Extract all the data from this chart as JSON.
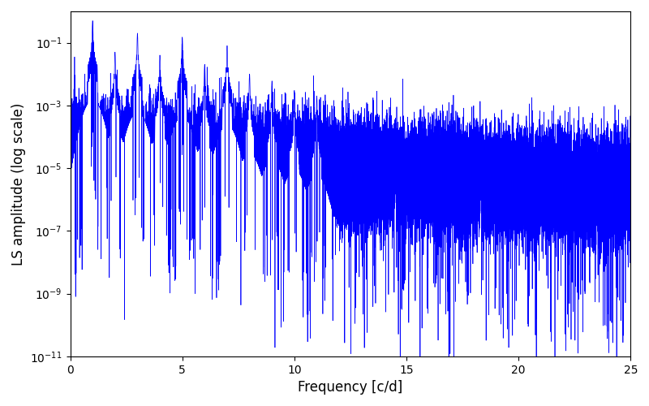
{
  "title": "",
  "xlabel": "Frequency [c/d]",
  "ylabel": "LS amplitude (log scale)",
  "line_color": "#0000FF",
  "xlim": [
    0,
    25
  ],
  "ylim": [
    1e-11,
    1.0
  ],
  "freq_max": 25,
  "n_points": 50000,
  "background_color": "#ffffff",
  "figsize": [
    8.0,
    5.0
  ],
  "dpi": 100,
  "fundamental": 1.0,
  "seed": 12345
}
